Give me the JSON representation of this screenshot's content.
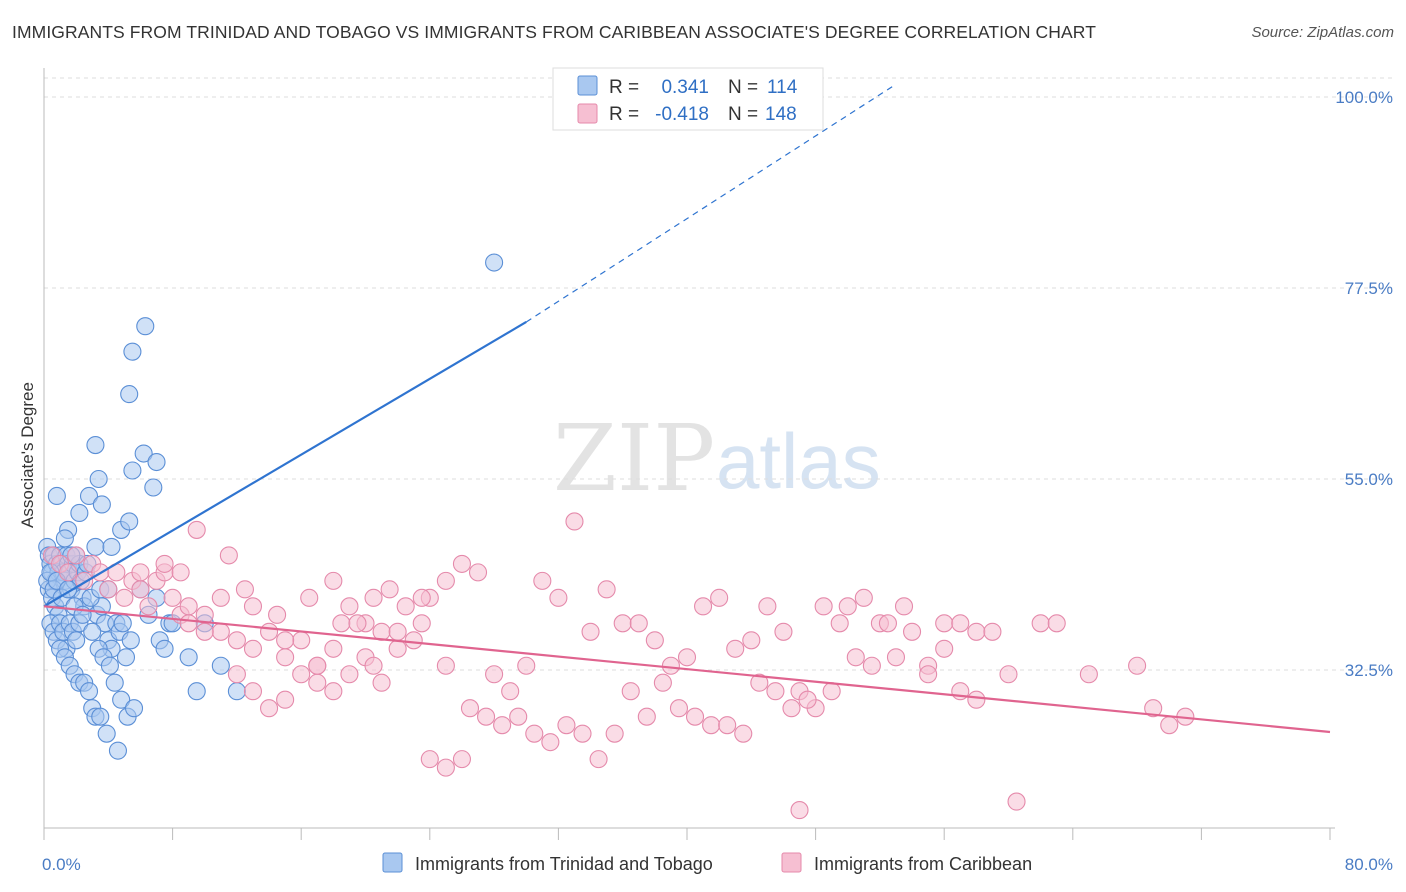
{
  "title": "IMMIGRANTS FROM TRINIDAD AND TOBAGO VS IMMIGRANTS FROM CARIBBEAN ASSOCIATE'S DEGREE CORRELATION CHART",
  "source": "Source: ZipAtlas.com",
  "watermark": {
    "zip": "ZIP",
    "atlas": "atlas"
  },
  "legend": {
    "r_label": "R =",
    "n_label": "N =",
    "entries": [
      {
        "r": "0.341",
        "n": "114"
      },
      {
        "r": "-0.418",
        "n": "148"
      }
    ]
  },
  "bottom_legend": [
    "Immigrants from Trinidad and Tobago",
    "Immigrants from Caribbean"
  ],
  "colors": {
    "blue_fill": "#a9c8f0",
    "blue_stroke": "#5b8fd6",
    "blue_line": "#2f74d0",
    "pink_fill": "#f6bfd2",
    "pink_stroke": "#e58aab",
    "pink_line": "#e0648f",
    "grid": "#dddddd",
    "tick_label": "#4a7cc4"
  },
  "chart_data": {
    "type": "scatter",
    "title": "IMMIGRANTS FROM TRINIDAD AND TOBAGO VS IMMIGRANTS FROM CARIBBEAN ASSOCIATE'S DEGREE CORRELATION CHART",
    "xlabel": "",
    "ylabel": "Associate's Degree",
    "xlim": [
      0,
      80
    ],
    "ylim": [
      10,
      102
    ],
    "x_tick_labels": [
      "0.0%",
      "80.0%"
    ],
    "y_ticks": [
      32.5,
      55.0,
      77.5,
      100.0
    ],
    "y_tick_labels": [
      "32.5%",
      "55.0%",
      "77.5%",
      "100.0%"
    ],
    "grid": "horizontal dashed",
    "legend_position": "top-center",
    "series": [
      {
        "name": "Immigrants from Trinidad and Tobago",
        "r": 0.341,
        "n": 114,
        "trend": {
          "x0": 0,
          "y0": 40.0,
          "x1": 30.0,
          "y1": 73.5,
          "dashed_to_x": 53.0,
          "dashed_to_y": 101.5
        },
        "points": [
          [
            0.2,
            47
          ],
          [
            0.3,
            46
          ],
          [
            0.4,
            45
          ],
          [
            0.5,
            44
          ],
          [
            0.6,
            46
          ],
          [
            0.7,
            43
          ],
          [
            0.8,
            45
          ],
          [
            0.9,
            44
          ],
          [
            1.0,
            46
          ],
          [
            1.1,
            45
          ],
          [
            0.3,
            42
          ],
          [
            0.5,
            41
          ],
          [
            0.7,
            40
          ],
          [
            0.9,
            39
          ],
          [
            1.2,
            44
          ],
          [
            1.3,
            43
          ],
          [
            1.4,
            46
          ],
          [
            1.5,
            45
          ],
          [
            1.6,
            44
          ],
          [
            1.7,
            42
          ],
          [
            1.8,
            45
          ],
          [
            1.9,
            43
          ],
          [
            2.0,
            46
          ],
          [
            2.1,
            44
          ],
          [
            2.2,
            45
          ],
          [
            2.3,
            43
          ],
          [
            2.4,
            41
          ],
          [
            2.5,
            40
          ],
          [
            2.6,
            44
          ],
          [
            2.7,
            45
          ],
          [
            0.4,
            38
          ],
          [
            0.6,
            37
          ],
          [
            0.8,
            36
          ],
          [
            1.0,
            38
          ],
          [
            1.2,
            37
          ],
          [
            1.4,
            35
          ],
          [
            1.6,
            38
          ],
          [
            1.8,
            37
          ],
          [
            2.0,
            36
          ],
          [
            2.2,
            38
          ],
          [
            1.0,
            35
          ],
          [
            1.3,
            34
          ],
          [
            1.6,
            33
          ],
          [
            1.9,
            32
          ],
          [
            2.2,
            31
          ],
          [
            2.5,
            31
          ],
          [
            2.8,
            30
          ],
          [
            3.0,
            28
          ],
          [
            3.2,
            27
          ],
          [
            3.5,
            27
          ],
          [
            3.3,
            39
          ],
          [
            3.6,
            40
          ],
          [
            3.8,
            38
          ],
          [
            4.0,
            36
          ],
          [
            4.2,
            35
          ],
          [
            4.5,
            38
          ],
          [
            4.7,
            37
          ],
          [
            4.9,
            38
          ],
          [
            5.1,
            34
          ],
          [
            5.4,
            36
          ],
          [
            3.0,
            37
          ],
          [
            3.4,
            35
          ],
          [
            3.7,
            34
          ],
          [
            4.1,
            33
          ],
          [
            4.4,
            31
          ],
          [
            4.8,
            29
          ],
          [
            5.2,
            27
          ],
          [
            5.6,
            28
          ],
          [
            3.9,
            25
          ],
          [
            4.6,
            23
          ],
          [
            0.8,
            53
          ],
          [
            1.5,
            49
          ],
          [
            2.2,
            51
          ],
          [
            2.8,
            53
          ],
          [
            3.2,
            47
          ],
          [
            3.6,
            52
          ],
          [
            4.2,
            47
          ],
          [
            4.8,
            49
          ],
          [
            5.3,
            50
          ],
          [
            6.0,
            42
          ],
          [
            3.2,
            59
          ],
          [
            3.4,
            55
          ],
          [
            5.5,
            56
          ],
          [
            6.2,
            58
          ],
          [
            6.8,
            54
          ],
          [
            7.0,
            57
          ],
          [
            5.3,
            65
          ],
          [
            5.5,
            70
          ],
          [
            6.3,
            73
          ],
          [
            7.8,
            38
          ],
          [
            6.5,
            39
          ],
          [
            7.0,
            41
          ],
          [
            7.2,
            36
          ],
          [
            7.5,
            35
          ],
          [
            8.0,
            38
          ],
          [
            9.0,
            34
          ],
          [
            9.5,
            30
          ],
          [
            10.0,
            38
          ],
          [
            11.0,
            33
          ],
          [
            12.0,
            30
          ],
          [
            0.2,
            43
          ],
          [
            0.4,
            44
          ],
          [
            0.6,
            42
          ],
          [
            0.8,
            43
          ],
          [
            1.1,
            41
          ],
          [
            1.5,
            42
          ],
          [
            1.9,
            40
          ],
          [
            2.4,
            39
          ],
          [
            2.9,
            41
          ],
          [
            3.5,
            42
          ],
          [
            4.0,
            42
          ],
          [
            1.3,
            48
          ],
          [
            28.0,
            80.5
          ],
          [
            1.7,
            46
          ]
        ]
      },
      {
        "name": "Immigrants from Caribbean",
        "r": -0.418,
        "n": 148,
        "trend": {
          "x0": 0,
          "y0": 40.0,
          "x1": 80.0,
          "y1": 25.2
        },
        "points": [
          [
            0.5,
            46
          ],
          [
            1.0,
            45
          ],
          [
            1.5,
            44
          ],
          [
            2.0,
            46
          ],
          [
            2.5,
            43
          ],
          [
            3.0,
            45
          ],
          [
            3.5,
            44
          ],
          [
            4.0,
            42
          ],
          [
            4.5,
            44
          ],
          [
            5.0,
            41
          ],
          [
            5.5,
            43
          ],
          [
            6.0,
            42
          ],
          [
            6.5,
            40
          ],
          [
            7.0,
            43
          ],
          [
            7.5,
            44
          ],
          [
            8.0,
            41
          ],
          [
            8.5,
            39
          ],
          [
            9.0,
            38
          ],
          [
            10.0,
            39
          ],
          [
            11.0,
            37
          ],
          [
            12.0,
            36
          ],
          [
            13.0,
            35
          ],
          [
            14.0,
            37
          ],
          [
            15.0,
            34
          ],
          [
            16.0,
            36
          ],
          [
            17.0,
            33
          ],
          [
            18.0,
            35
          ],
          [
            19.0,
            32
          ],
          [
            20.0,
            34
          ],
          [
            21.0,
            31
          ],
          [
            6.0,
            44
          ],
          [
            7.5,
            45
          ],
          [
            8.5,
            44
          ],
          [
            9.0,
            40
          ],
          [
            10.0,
            37
          ],
          [
            11.0,
            41
          ],
          [
            12.0,
            32
          ],
          [
            13.0,
            30
          ],
          [
            14.0,
            28
          ],
          [
            15.0,
            29
          ],
          [
            16.0,
            32
          ],
          [
            17.0,
            31
          ],
          [
            18.0,
            30
          ],
          [
            19.0,
            40
          ],
          [
            20.0,
            38
          ],
          [
            21.0,
            37
          ],
          [
            22.0,
            35
          ],
          [
            23.0,
            36
          ],
          [
            24.0,
            41
          ],
          [
            25.0,
            43
          ],
          [
            26.0,
            45
          ],
          [
            27.0,
            44
          ],
          [
            28.0,
            32
          ],
          [
            29.0,
            30
          ],
          [
            30.0,
            33
          ],
          [
            31.0,
            43
          ],
          [
            32.0,
            41
          ],
          [
            33.0,
            50
          ],
          [
            34.0,
            37
          ],
          [
            35.0,
            42
          ],
          [
            36.0,
            38
          ],
          [
            37.0,
            38
          ],
          [
            38.0,
            36
          ],
          [
            39.0,
            33
          ],
          [
            40.0,
            34
          ],
          [
            41.0,
            40
          ],
          [
            42.0,
            41
          ],
          [
            43.0,
            35
          ],
          [
            44.0,
            36
          ],
          [
            45.0,
            40
          ],
          [
            46.0,
            37
          ],
          [
            47.0,
            30
          ],
          [
            48.0,
            28
          ],
          [
            49.0,
            30
          ],
          [
            50.0,
            40
          ],
          [
            51.0,
            41
          ],
          [
            52.0,
            38
          ],
          [
            53.0,
            34
          ],
          [
            54.0,
            37
          ],
          [
            55.0,
            33
          ],
          [
            56.0,
            38
          ],
          [
            57.0,
            30
          ],
          [
            58.0,
            29
          ],
          [
            9.5,
            49
          ],
          [
            11.5,
            46
          ],
          [
            13.0,
            40
          ],
          [
            15.0,
            36
          ],
          [
            17.0,
            33
          ],
          [
            18.5,
            38
          ],
          [
            20.5,
            33
          ],
          [
            22.0,
            37
          ],
          [
            23.5,
            41
          ],
          [
            25.0,
            33
          ],
          [
            26.5,
            28
          ],
          [
            27.5,
            27
          ],
          [
            28.5,
            26
          ],
          [
            29.5,
            27
          ],
          [
            30.5,
            25
          ],
          [
            31.5,
            24
          ],
          [
            32.5,
            26
          ],
          [
            33.5,
            25
          ],
          [
            34.5,
            22
          ],
          [
            35.5,
            25
          ],
          [
            36.5,
            30
          ],
          [
            37.5,
            27
          ],
          [
            38.5,
            31
          ],
          [
            39.5,
            28
          ],
          [
            40.5,
            27
          ],
          [
            41.5,
            26
          ],
          [
            42.5,
            26
          ],
          [
            43.5,
            25
          ],
          [
            44.5,
            31
          ],
          [
            45.5,
            30
          ],
          [
            46.5,
            28
          ],
          [
            47.5,
            29
          ],
          [
            48.5,
            40
          ],
          [
            49.5,
            38
          ],
          [
            50.5,
            34
          ],
          [
            51.5,
            33
          ],
          [
            52.5,
            38
          ],
          [
            53.5,
            40
          ],
          [
            55.0,
            32
          ],
          [
            56.0,
            35
          ],
          [
            57.0,
            38
          ],
          [
            58.0,
            37
          ],
          [
            59.0,
            37
          ],
          [
            60.0,
            32
          ],
          [
            62.0,
            38
          ],
          [
            63.0,
            38
          ],
          [
            65.0,
            32
          ],
          [
            24.0,
            22
          ],
          [
            25.0,
            21
          ],
          [
            26.0,
            22
          ],
          [
            47.0,
            16
          ],
          [
            60.5,
            17
          ],
          [
            69.0,
            28
          ],
          [
            70.0,
            26
          ],
          [
            71.0,
            27
          ],
          [
            68.0,
            33
          ],
          [
            12.5,
            42
          ],
          [
            14.5,
            39
          ],
          [
            16.5,
            41
          ],
          [
            18.0,
            43
          ],
          [
            19.5,
            38
          ],
          [
            20.5,
            41
          ],
          [
            21.5,
            42
          ],
          [
            22.5,
            40
          ],
          [
            23.5,
            38
          ]
        ]
      }
    ]
  }
}
